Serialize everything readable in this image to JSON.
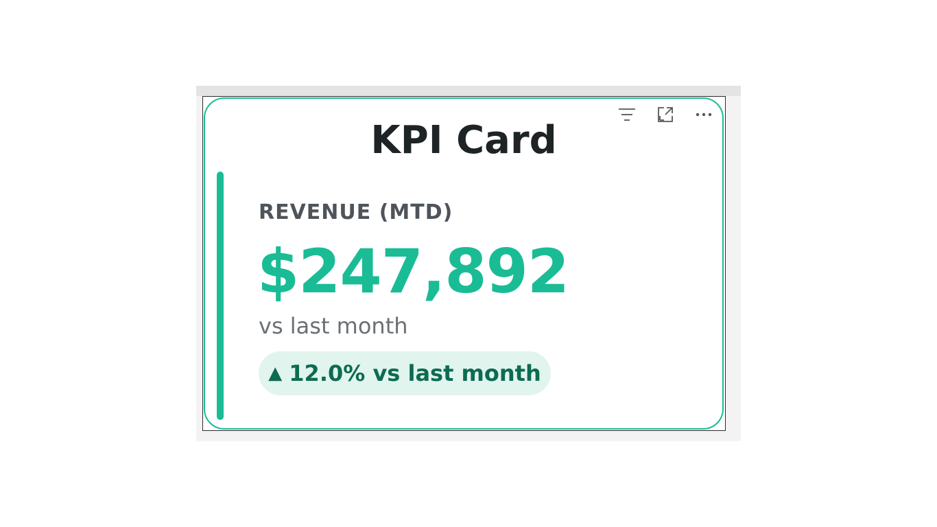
{
  "card": {
    "title": "KPI Card",
    "label": "REVENUE (MTD)",
    "value": "$247,892",
    "subtitle": "vs last month",
    "change": {
      "arrow": "▲",
      "text": "12.0% vs last month"
    }
  },
  "toolbar": {
    "icons": [
      "filter-icon",
      "focus-mode-icon",
      "more-options-icon"
    ]
  },
  "colors": {
    "accent": "#1abc95",
    "pill_bg": "#e1f4ee",
    "pill_text": "#0d6b52",
    "title": "#1e2326"
  }
}
